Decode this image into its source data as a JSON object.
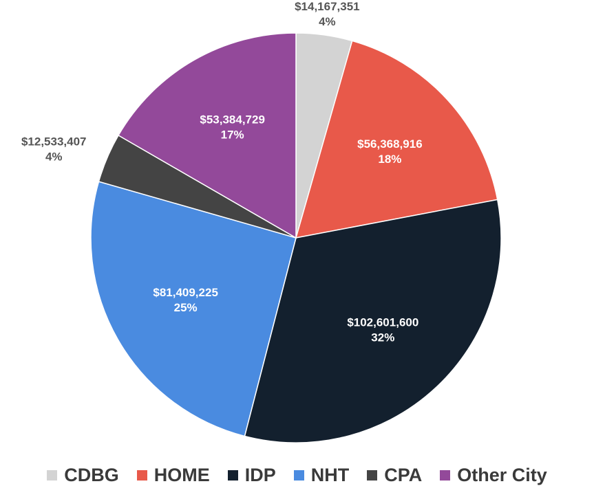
{
  "chart_data": {
    "type": "pie",
    "categories": [
      "CDBG",
      "HOME",
      "IDP",
      "NHT",
      "CPA",
      "Other City"
    ],
    "values": [
      14167351,
      56368916,
      102601600,
      81409225,
      12533407,
      53384729
    ],
    "value_labels": [
      "$14,167,351",
      "$56,368,916",
      "$102,601,600",
      "$81,409,225",
      "$12,533,407",
      "$53,384,729"
    ],
    "percent_labels": [
      "4%",
      "18%",
      "32%",
      "25%",
      "4%",
      "17%"
    ],
    "colors": [
      "#d3d3d3",
      "#e8594a",
      "#13202e",
      "#4a8be0",
      "#444444",
      "#93499a"
    ],
    "legend": "bottom"
  }
}
